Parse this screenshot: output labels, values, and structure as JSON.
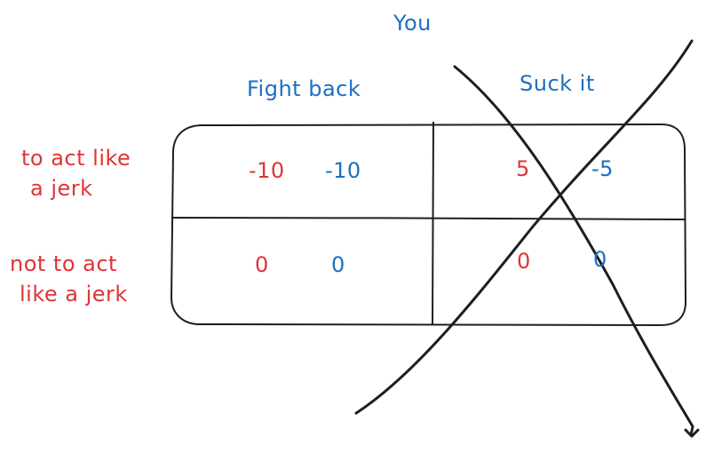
{
  "colors": {
    "blue": "#1c6fc1",
    "red": "#e03434",
    "ink": "#1e1e1e"
  },
  "column_player": {
    "label": "You",
    "options": [
      "Fight back",
      "Suck it"
    ]
  },
  "row_options": [
    {
      "line1": "to act like",
      "line2": "a jerk"
    },
    {
      "line1": "not to act",
      "line2": "like a jerk"
    }
  ],
  "payoffs": [
    [
      {
        "red": "-10",
        "blue": "-10"
      },
      {
        "red": "5",
        "blue": "-5"
      }
    ],
    [
      {
        "red": "0",
        "blue": "0"
      },
      {
        "red": "0",
        "blue": "0"
      }
    ]
  ],
  "cross_out": {
    "struck_column": "Suck it"
  }
}
